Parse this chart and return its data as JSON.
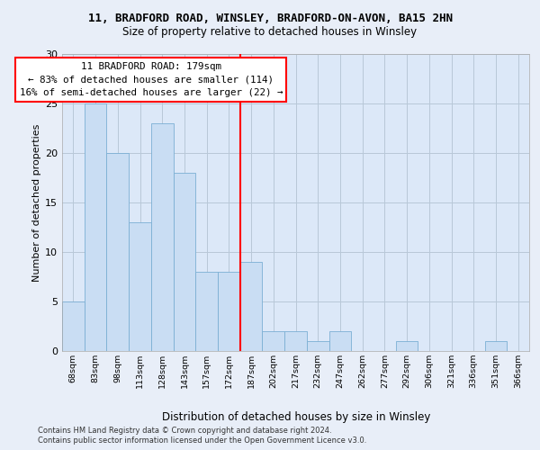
{
  "title1": "11, BRADFORD ROAD, WINSLEY, BRADFORD-ON-AVON, BA15 2HN",
  "title2": "Size of property relative to detached houses in Winsley",
  "xlabel": "Distribution of detached houses by size in Winsley",
  "ylabel": "Number of detached properties",
  "bar_labels": [
    "68sqm",
    "83sqm",
    "98sqm",
    "113sqm",
    "128sqm",
    "143sqm",
    "157sqm",
    "172sqm",
    "187sqm",
    "202sqm",
    "217sqm",
    "232sqm",
    "247sqm",
    "262sqm",
    "277sqm",
    "292sqm",
    "306sqm",
    "321sqm",
    "336sqm",
    "351sqm",
    "366sqm"
  ],
  "bar_values": [
    5,
    25,
    20,
    13,
    23,
    18,
    8,
    8,
    9,
    2,
    2,
    1,
    2,
    0,
    0,
    1,
    0,
    0,
    0,
    1,
    0
  ],
  "bar_color": "#c9ddf3",
  "bar_edge_color": "#7bafd4",
  "vline_x": 7.5,
  "annotation_text": "11 BRADFORD ROAD: 179sqm\n← 83% of detached houses are smaller (114)\n16% of semi-detached houses are larger (22) →",
  "annotation_box_color": "white",
  "annotation_box_edge": "red",
  "vline_color": "red",
  "ylim": [
    0,
    30
  ],
  "yticks": [
    0,
    5,
    10,
    15,
    20,
    25,
    30
  ],
  "footer1": "Contains HM Land Registry data © Crown copyright and database right 2024.",
  "footer2": "Contains public sector information licensed under the Open Government Licence v3.0.",
  "background_color": "#e8eef8",
  "plot_bg_color": "#dce8f8",
  "grid_color": "#b8c8d8"
}
